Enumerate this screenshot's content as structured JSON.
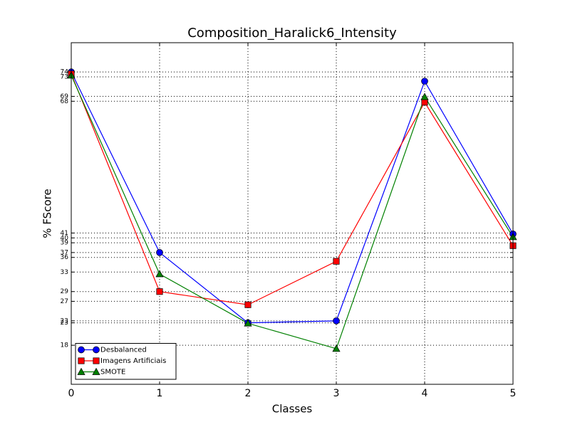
{
  "chart_data": {
    "type": "line",
    "title": "Composition_Haralick6_Intensity",
    "x_label": "Classes",
    "y_label": "% FScore",
    "x": [
      0,
      1,
      2,
      3,
      4,
      5
    ],
    "series": [
      {
        "name": "Desbalanced",
        "color": "#0000ff",
        "marker": "circle",
        "values": [
          74.0,
          37.0,
          22.6,
          23.0,
          72.1,
          40.8
        ]
      },
      {
        "name": "Imagens Artificiais",
        "color": "#ff0000",
        "marker": "square",
        "values": [
          73.6,
          29.0,
          26.3,
          35.2,
          67.8,
          38.4
        ]
      },
      {
        "name": "SMOTE",
        "color": "#008000",
        "marker": "triangle",
        "values": [
          73.3,
          32.6,
          22.5,
          17.3,
          68.9,
          40.2
        ]
      }
    ],
    "xlim": [
      0,
      5
    ],
    "xticks": [
      0,
      1,
      2,
      3,
      4,
      5
    ],
    "ylim": [
      10,
      80
    ],
    "yticks": [
      18,
      {
        "value": 22.6,
        "label": "23"
      },
      23,
      27,
      29,
      33,
      36,
      37,
      39,
      40,
      41,
      68,
      69,
      73,
      74
    ],
    "grid": true,
    "legend": "lower left"
  }
}
